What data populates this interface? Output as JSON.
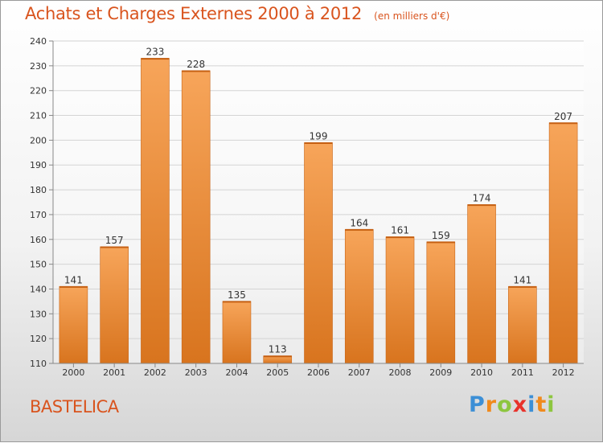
{
  "header": {
    "title": "Achats et Charges Externes 2000 à 2012",
    "unit": "(en milliers d'€)"
  },
  "place": "BASTELICA",
  "logo": {
    "text": "Proxiti",
    "letter_colors": [
      "#3c8fd6",
      "#f08a1c",
      "#8dc63f",
      "#e8322b",
      "#3c8fd6",
      "#f08a1c",
      "#8dc63f"
    ]
  },
  "colors": {
    "bar_top": "#f7a55a",
    "bar_bottom": "#d8741e",
    "title": "#d9541e"
  },
  "chart_data": {
    "type": "bar",
    "categories": [
      "2000",
      "2001",
      "2002",
      "2003",
      "2004",
      "2005",
      "2006",
      "2007",
      "2008",
      "2009",
      "2010",
      "2011",
      "2012"
    ],
    "values": [
      141,
      157,
      233,
      228,
      135,
      113,
      199,
      164,
      161,
      159,
      174,
      141,
      207
    ],
    "data_labels": [
      "141",
      "157",
      "233",
      "228",
      "135",
      "113",
      "199",
      "164",
      "161",
      "159",
      "174",
      "141",
      "207"
    ],
    "ylim": [
      110,
      240
    ],
    "yticks": [
      "110",
      "120",
      "130",
      "140",
      "150",
      "160",
      "170",
      "180",
      "190",
      "200",
      "210",
      "220",
      "230",
      "240"
    ],
    "grid": true,
    "legend": "none"
  }
}
